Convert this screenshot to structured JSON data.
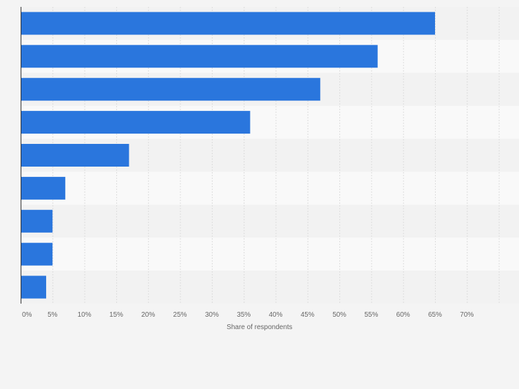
{
  "chart_data": {
    "type": "bar",
    "orientation": "horizontal",
    "categories": [
      "",
      "",
      "",
      "",
      "",
      "",
      "",
      "",
      ""
    ],
    "values": [
      65,
      56,
      47,
      36,
      17,
      7,
      5,
      5,
      4
    ],
    "xlabel": "Share of respondents",
    "ylabel": "",
    "xlim": [
      0,
      75
    ],
    "ticks": [
      0,
      5,
      10,
      15,
      20,
      25,
      30,
      35,
      40,
      45,
      50,
      55,
      60,
      65,
      70
    ],
    "tick_labels": [
      "0%",
      "5%",
      "10%",
      "15%",
      "20%",
      "25%",
      "30%",
      "35%",
      "40%",
      "45%",
      "50%",
      "55%",
      "60%",
      "65%",
      "70%"
    ],
    "grid": true,
    "colors": {
      "bar": "#2a76dd",
      "band_dark": "#f2f2f2",
      "band_light": "#f9f9f9",
      "grid": "#dcdcdc",
      "axis": "#333333",
      "tick_text": "#666666",
      "background": "#f4f4f4"
    }
  }
}
